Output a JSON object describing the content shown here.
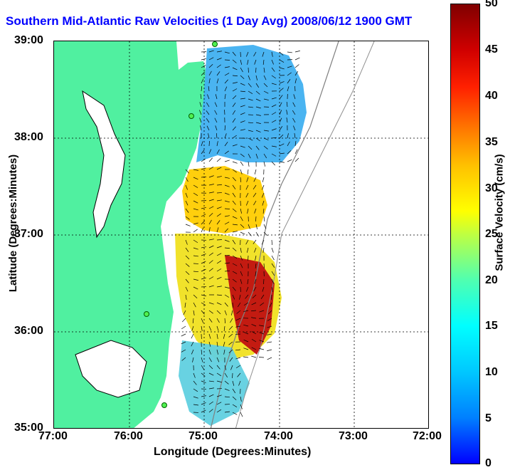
{
  "title": "Southern Mid-Atlantic Raw Velocities (1 Day Avg) 2008/06/12 1900 GMT",
  "x_axis": {
    "label": "Longitude (Degrees:Minutes)",
    "ticks": [
      "77:00",
      "76:00",
      "75:00",
      "74:00",
      "73:00",
      "72:00"
    ]
  },
  "y_axis": {
    "label": "Latitude (Degrees:Minutes)",
    "ticks": [
      "39:00",
      "38:00",
      "37:00",
      "36:00",
      "35:00"
    ]
  },
  "colorbar": {
    "label": "Surface Velocity (cm/s)",
    "ticks": [
      "50",
      "45",
      "40",
      "35",
      "30",
      "25",
      "20",
      "15",
      "10",
      "5",
      "0"
    ]
  },
  "colors": {
    "land": "#50f0a0",
    "title": "#0000ff",
    "coast": "#000000",
    "arrow": "#000000"
  }
}
